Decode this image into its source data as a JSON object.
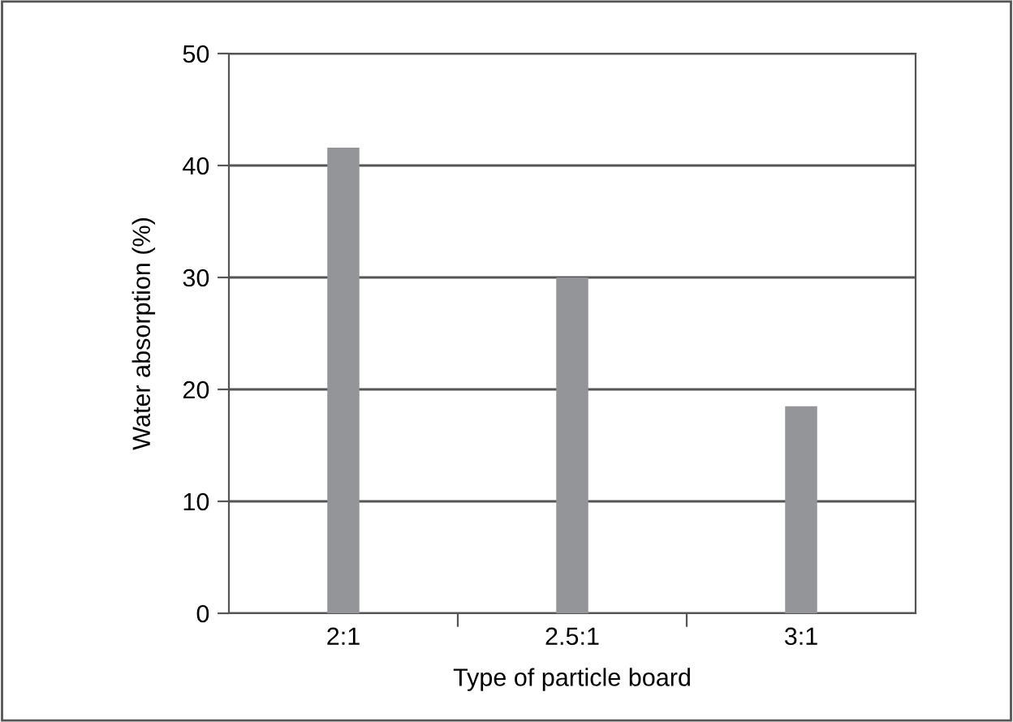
{
  "chart_data": {
    "type": "bar",
    "xlabel": "Type of particle board",
    "ylabel": "Water absorption (%)",
    "categories": [
      "2:1",
      "2.5:1",
      "3:1"
    ],
    "values": [
      41.6,
      30,
      18.5
    ],
    "color": "#939598",
    "ylim": [
      0,
      50
    ],
    "yticks": [
      0,
      10,
      20,
      30,
      40,
      50
    ],
    "grid": "y"
  }
}
